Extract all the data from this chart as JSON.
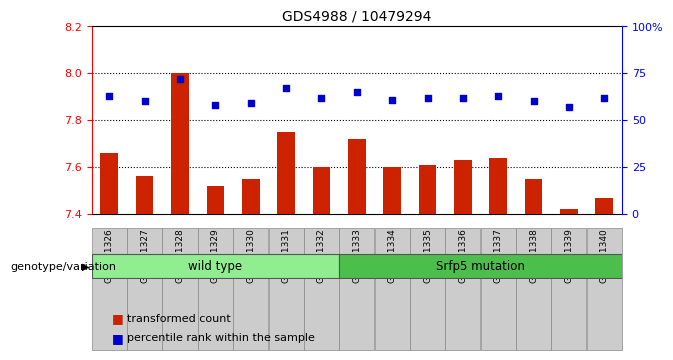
{
  "title": "GDS4988 / 10479294",
  "samples": [
    "GSM921326",
    "GSM921327",
    "GSM921328",
    "GSM921329",
    "GSM921330",
    "GSM921331",
    "GSM921332",
    "GSM921333",
    "GSM921334",
    "GSM921335",
    "GSM921336",
    "GSM921337",
    "GSM921338",
    "GSM921339",
    "GSM921340"
  ],
  "bar_values": [
    7.66,
    7.56,
    8.0,
    7.52,
    7.55,
    7.75,
    7.6,
    7.72,
    7.6,
    7.61,
    7.63,
    7.64,
    7.55,
    7.42,
    7.47
  ],
  "dot_values": [
    63,
    60,
    72,
    58,
    59,
    67,
    62,
    65,
    61,
    62,
    62,
    63,
    60,
    57,
    62
  ],
  "ylim": [
    7.4,
    8.2
  ],
  "yticks": [
    7.4,
    7.6,
    7.8,
    8.0,
    8.2
  ],
  "right_yticks": [
    0,
    25,
    50,
    75,
    100
  ],
  "right_ytick_labels": [
    "0",
    "25",
    "50",
    "75",
    "100%"
  ],
  "bar_bottom": 7.4,
  "bar_color": "#cc2200",
  "dot_color": "#0000cc",
  "group1_label": "wild type",
  "group2_label": "Srfp5 mutation",
  "group1_count": 7,
  "group_label_text": "genotype/variation",
  "legend1": "transformed count",
  "legend2": "percentile rank within the sample",
  "plot_bg": "#ffffff",
  "light_green": "#90ee90",
  "dark_green": "#4cbe4c"
}
